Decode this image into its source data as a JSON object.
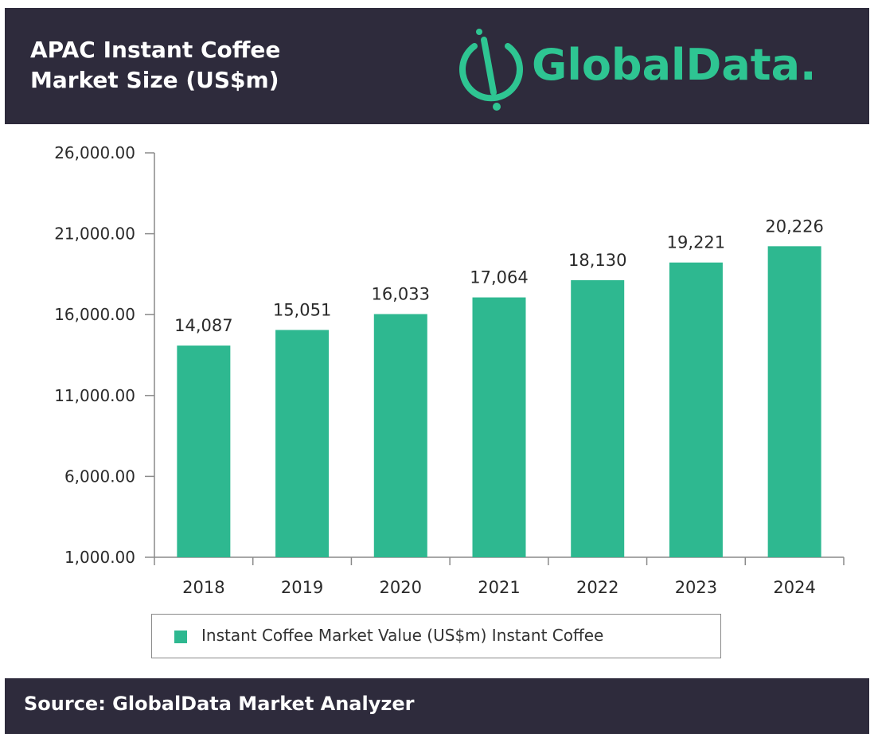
{
  "header": {
    "title_line1": "APAC Instant Coffee",
    "title_line2": "Market Size (US$m)",
    "logo_text": "GlobalData."
  },
  "colors": {
    "header_bg": "#2e2b3c",
    "bar": "#2eb890",
    "logo": "#2ec592"
  },
  "legend": {
    "label": "Instant Coffee Market Value (US$m) Instant Coffee"
  },
  "footer": {
    "source": "Source: GlobalData Market Analyzer"
  },
  "chart_data": {
    "type": "bar",
    "title": "APAC Instant Coffee Market Size (US$m)",
    "categories": [
      "2018",
      "2019",
      "2020",
      "2021",
      "2022",
      "2023",
      "2024"
    ],
    "series": [
      {
        "name": "Instant Coffee Market Value (US$m) Instant Coffee",
        "values": [
          14087,
          15051,
          16033,
          17064,
          18130,
          19221,
          20226
        ]
      }
    ],
    "data_labels": [
      "14,087",
      "15,051",
      "16,033",
      "17,064",
      "18,130",
      "19,221",
      "20,226"
    ],
    "ylim": [
      1000,
      26000
    ],
    "yticks": [
      1000,
      6000,
      11000,
      16000,
      21000,
      26000
    ],
    "ytick_labels": [
      "1,000.00",
      "6,000.00",
      "11,000.00",
      "16,000.00",
      "21,000.00",
      "26,000.00"
    ],
    "grid": false,
    "legend_position": "bottom"
  }
}
